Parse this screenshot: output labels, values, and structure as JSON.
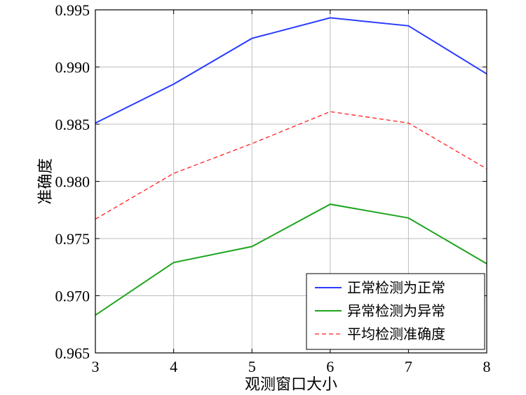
{
  "chart_data": {
    "type": "line",
    "title": "",
    "xlabel": "观测窗口大小",
    "ylabel": "准确度",
    "x": [
      3,
      4,
      5,
      6,
      7,
      8
    ],
    "xlim": [
      3,
      8
    ],
    "ylim": [
      0.965,
      0.995
    ],
    "xticks": [
      "3",
      "4",
      "5",
      "6",
      "7",
      "8"
    ],
    "yticks": [
      "0.965",
      "0.970",
      "0.975",
      "0.980",
      "0.985",
      "0.990",
      "0.995"
    ],
    "ytick_values": [
      0.965,
      0.97,
      0.975,
      0.98,
      0.985,
      0.99,
      0.995
    ],
    "grid": true,
    "legend_position": "bottom-right",
    "series": [
      {
        "name": "正常检测为正常",
        "values": [
          0.9851,
          0.9885,
          0.9925,
          0.9943,
          0.9936,
          0.9894
        ],
        "color": "#2a3cff",
        "dash": "solid"
      },
      {
        "name": "异常检测为异常",
        "values": [
          0.9683,
          0.9729,
          0.9743,
          0.978,
          0.9768,
          0.9728
        ],
        "color": "#1fa51f",
        "dash": "solid"
      },
      {
        "name": "平均检测准确度",
        "values": [
          0.9767,
          0.9807,
          0.9833,
          0.9861,
          0.9851,
          0.9811
        ],
        "color": "#ff2020",
        "dash": "dashed"
      }
    ]
  }
}
